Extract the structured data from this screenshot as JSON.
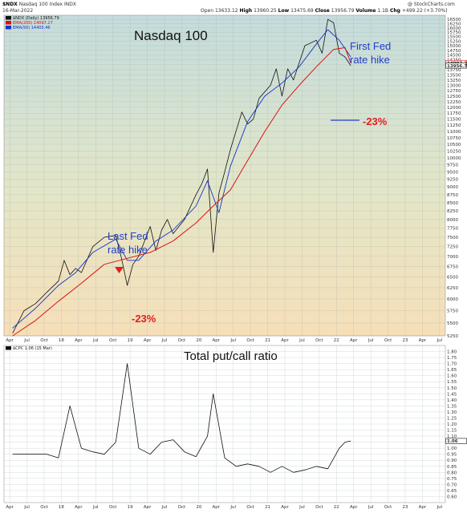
{
  "header": {
    "ticker": "$NDX",
    "name": "Nasdaq 100 Index",
    "exchange": "INDX",
    "date": "16-Mar-2022",
    "open_label": "Open",
    "open": "13633.12",
    "high_label": "High",
    "high": "13960.25",
    "low_label": "Low",
    "low": "13475.69",
    "close_label": "Close",
    "close": "13956.79",
    "volume_label": "Volume",
    "volume": "1.1B",
    "chg_label": "Chg",
    "chg": "+499.22 (+3.70%)",
    "watermark": "@ StockCharts.com"
  },
  "colors": {
    "price": "#111111",
    "ema200": "#dd1111",
    "ema50": "#1133cc",
    "annotation_blue": "#1f3fc8",
    "annotation_red": "#e02020",
    "background_top": "#c5dcdc",
    "background_bottom": "#f6dfb8"
  },
  "chart_data": [
    {
      "type": "line",
      "title": "Nasdaq 100",
      "legend": [
        {
          "label": "$NDX (Daily) 13956.79",
          "color": "#111111"
        },
        {
          "label": "EMA(200) 14097.27",
          "color": "#dd1111"
        },
        {
          "label": "EMA(50) 14405.46",
          "color": "#1133cc"
        }
      ],
      "legend_placement": "top-left",
      "y_scale": "log",
      "ylim": [
        5250,
        16750
      ],
      "y_ticks": [
        5250,
        5500,
        5750,
        6000,
        6250,
        6500,
        6750,
        7000,
        7250,
        7500,
        7750,
        8000,
        8250,
        8500,
        8750,
        9000,
        9250,
        9500,
        9750,
        10000,
        10250,
        10500,
        10750,
        11000,
        11250,
        11500,
        11750,
        12000,
        12250,
        12500,
        12750,
        13000,
        13250,
        13500,
        13750,
        14000,
        14250,
        14500,
        14750,
        15000,
        15250,
        15500,
        15750,
        16000,
        16250,
        16500
      ],
      "xlim": [
        "2017-03",
        "2023-08"
      ],
      "x_ticks": [
        "Apr",
        "Jul",
        "Oct",
        "18",
        "Apr",
        "Jul",
        "Oct",
        "19",
        "Apr",
        "Jul",
        "Oct",
        "20",
        "Apr",
        "Jul",
        "Oct",
        "21",
        "Apr",
        "Jul",
        "Oct",
        "22",
        "Apr",
        "Jul",
        "Oct",
        "23",
        "Apr",
        "Jul"
      ],
      "grid": true,
      "price_labels": [
        {
          "value": 14097.27,
          "text": "14097.27",
          "color": "#dd1111"
        },
        {
          "value": 13956.79,
          "text": "13956.79",
          "color": "#111111"
        }
      ],
      "series": [
        {
          "name": "$NDX (Daily) 13956.79",
          "x": [
            "2017-04",
            "2017-06",
            "2017-08",
            "2017-10",
            "2017-12",
            "2018-01",
            "2018-02",
            "2018-03",
            "2018-04",
            "2018-06",
            "2018-08",
            "2018-10",
            "2018-11",
            "2018-12",
            "2019-01",
            "2019-02",
            "2019-04",
            "2019-05",
            "2019-06",
            "2019-07",
            "2019-08",
            "2019-10",
            "2019-12",
            "2020-01",
            "2020-02",
            "2020-03",
            "2020-04",
            "2020-05",
            "2020-06",
            "2020-08",
            "2020-09",
            "2020-10",
            "2020-11",
            "2021-01",
            "2021-02",
            "2021-03",
            "2021-04",
            "2021-05",
            "2021-07",
            "2021-09",
            "2021-10",
            "2021-11",
            "2021-12",
            "2022-01",
            "2022-02",
            "2022-03"
          ],
          "values": [
            5300,
            5750,
            5900,
            6150,
            6400,
            6900,
            6550,
            6700,
            6600,
            7250,
            7500,
            7550,
            6950,
            6300,
            6800,
            7000,
            7800,
            7150,
            7700,
            8000,
            7600,
            8000,
            8750,
            9100,
            9600,
            7100,
            8800,
            9500,
            10300,
            11800,
            11300,
            11500,
            12400,
            13000,
            13800,
            12500,
            13800,
            13250,
            15000,
            15300,
            14600,
            16500,
            16300,
            14600,
            14400,
            13956
          ]
        },
        {
          "name": "EMA(50) 14405.46",
          "x": [
            "2017-04",
            "2017-08",
            "2017-12",
            "2018-03",
            "2018-06",
            "2018-10",
            "2018-12",
            "2019-02",
            "2019-05",
            "2019-08",
            "2019-12",
            "2020-02",
            "2020-04",
            "2020-06",
            "2020-09",
            "2020-12",
            "2021-03",
            "2021-06",
            "2021-09",
            "2021-11",
            "2022-01",
            "2022-03"
          ],
          "values": [
            5400,
            5800,
            6300,
            6600,
            7100,
            7450,
            6900,
            6900,
            7400,
            7700,
            8400,
            9200,
            8200,
            9700,
            11400,
            12500,
            13100,
            13900,
            15100,
            15900,
            15300,
            14405
          ]
        },
        {
          "name": "EMA(200) 14097.27",
          "x": [
            "2017-04",
            "2017-08",
            "2017-12",
            "2018-04",
            "2018-08",
            "2018-12",
            "2019-04",
            "2019-08",
            "2019-12",
            "2020-03",
            "2020-06",
            "2020-09",
            "2020-12",
            "2021-03",
            "2021-06",
            "2021-09",
            "2021-12",
            "2022-02",
            "2022-03"
          ],
          "values": [
            5250,
            5550,
            5950,
            6350,
            6800,
            6950,
            7100,
            7400,
            7900,
            8400,
            8900,
            9900,
            11000,
            12100,
            13000,
            13900,
            14800,
            14900,
            14097
          ]
        }
      ],
      "annotations": [
        {
          "text": "Nasdaq 100"
        },
        {
          "text": "Last Fed"
        },
        {
          "text": "rate hike"
        },
        {
          "text": "First Fed"
        },
        {
          "text": "rate hike"
        },
        {
          "text": "-23%"
        },
        {
          "text": "-23%"
        }
      ]
    },
    {
      "type": "line",
      "title": "Total put/call ratio",
      "legend": [
        {
          "label": "$CPC 1.06 (15 Mar)",
          "color": "#111111"
        }
      ],
      "legend_placement": "top-left",
      "ylim": [
        0.55,
        1.85
      ],
      "y_ticks": [
        0.6,
        0.65,
        0.7,
        0.75,
        0.8,
        0.85,
        0.9,
        0.95,
        1.0,
        1.05,
        1.1,
        1.15,
        1.2,
        1.25,
        1.3,
        1.35,
        1.4,
        1.45,
        1.5,
        1.55,
        1.6,
        1.65,
        1.7,
        1.75,
        1.8
      ],
      "price_labels": [
        {
          "value": 1.06,
          "text": "1.06",
          "color": "#111111"
        }
      ],
      "xlim": [
        "2017-03",
        "2023-08"
      ],
      "x_ticks": [
        "Apr",
        "Jul",
        "Oct",
        "18",
        "Apr",
        "Jul",
        "Oct",
        "19",
        "Apr",
        "Jul",
        "Oct",
        "20",
        "Apr",
        "Jul",
        "Oct",
        "21",
        "Apr",
        "Jul",
        "Oct",
        "22",
        "Apr",
        "Jul",
        "Oct",
        "23",
        "Apr",
        "Jul"
      ],
      "grid": true,
      "series": [
        {
          "name": "$CPC 1.06 (15 Mar)",
          "x": [
            "2017-04",
            "2017-06",
            "2017-08",
            "2017-10",
            "2017-12",
            "2018-02",
            "2018-04",
            "2018-06",
            "2018-08",
            "2018-10",
            "2018-12",
            "2019-02",
            "2019-04",
            "2019-06",
            "2019-08",
            "2019-10",
            "2019-12",
            "2020-02",
            "2020-03",
            "2020-05",
            "2020-07",
            "2020-09",
            "2020-11",
            "2021-01",
            "2021-03",
            "2021-05",
            "2021-07",
            "2021-09",
            "2021-11",
            "2022-01",
            "2022-02",
            "2022-03"
          ],
          "values": [
            0.95,
            0.95,
            0.95,
            0.95,
            0.92,
            1.35,
            1.0,
            0.97,
            0.95,
            1.05,
            1.7,
            1.0,
            0.95,
            1.05,
            1.07,
            0.97,
            0.93,
            1.1,
            1.45,
            0.92,
            0.85,
            0.87,
            0.85,
            0.8,
            0.85,
            0.8,
            0.82,
            0.85,
            0.83,
            1.0,
            1.05,
            1.06
          ]
        }
      ]
    }
  ]
}
